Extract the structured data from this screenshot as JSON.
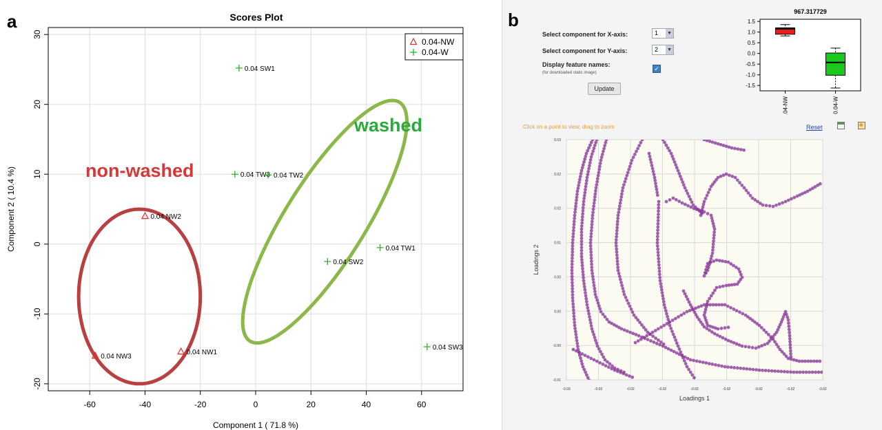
{
  "panel_a": {
    "letter": "a",
    "annotations": {
      "nonwashed": "non-washed",
      "washed": "washed"
    },
    "colors": {
      "nw": "#e8282a",
      "w": "#21b521",
      "nw_ellipse": "#b84040",
      "w_ellipse": "#8bb848",
      "grid": "#dddddd"
    }
  },
  "panel_b": {
    "letter": "b",
    "controls": {
      "x_axis_label": "Select component for X-axis:",
      "x_axis_value": "1",
      "y_axis_label": "Select component for Y-axis:",
      "y_axis_value": "2",
      "display_names_label": "Display feature names:",
      "display_names_note": "(for downloaded static image)",
      "display_names_checked": true,
      "update_button": "Update"
    },
    "hint": "Click on a point to view, drag to zoom",
    "reset": "Reset",
    "icons": [
      "table-icon",
      "image-icon"
    ]
  },
  "chart_data": [
    {
      "type": "scatter",
      "title": "Scores Plot",
      "xlabel": "Component 1 ( 71.8 %)",
      "ylabel": "Component 2 ( 10.4 %)",
      "xlim": [
        -75,
        75
      ],
      "ylim": [
        -21,
        31
      ],
      "xticks": [
        -60,
        -40,
        -20,
        0,
        20,
        40,
        60
      ],
      "yticks": [
        -20,
        -10,
        0,
        10,
        20,
        30
      ],
      "grid": true,
      "legend_position": "top-right",
      "series": [
        {
          "name": "0.04-NW",
          "marker": "triangle",
          "color": "#e8282a",
          "points": [
            {
              "label": "0.04 NW2",
              "x": -40,
              "y": 4
            },
            {
              "label": "0.04 NW1",
              "x": -27,
              "y": -15.4
            },
            {
              "label": "0.04 NW3",
              "x": -58,
              "y": -16
            }
          ]
        },
        {
          "name": "0.04-W",
          "marker": "plus",
          "color": "#21b521",
          "points": [
            {
              "label": "0.04 SW1",
              "x": -6,
              "y": 25.2
            },
            {
              "label": "0.04 TW3",
              "x": -7.5,
              "y": 10
            },
            {
              "label": "0.04 TW2",
              "x": 4.5,
              "y": 9.9
            },
            {
              "label": "0.04 TW1",
              "x": 45,
              "y": -0.5
            },
            {
              "label": "0.04 SW2",
              "x": 26,
              "y": -2.5
            },
            {
              "label": "0.04 SW3",
              "x": 62,
              "y": -14.7
            }
          ]
        }
      ],
      "ellipses": [
        {
          "group": "0.04-NW",
          "cx": -42,
          "cy": -7.5,
          "rx": 22,
          "ry": 12.5,
          "angle": 0
        },
        {
          "group": "0.04-W",
          "cx": 25,
          "cy": 3.2,
          "rx": 51,
          "ry": 14.5,
          "angle": -58
        }
      ]
    },
    {
      "type": "box",
      "title": "967.317729",
      "categories": [
        ".04-NW",
        "0.04-W"
      ],
      "ylim": [
        -1.75,
        1.6
      ],
      "yticks": [
        "1.5",
        "1.0",
        "0.5",
        "0.0",
        "-0.5",
        "-1.0",
        "-1.5"
      ],
      "boxes": [
        {
          "category": ".04-NW",
          "min": 0.82,
          "q1": 0.9,
          "median": 1.15,
          "q3": 1.2,
          "max": 1.35,
          "color": "#ee1c1c"
        },
        {
          "category": "0.04-W",
          "min": -1.62,
          "q1": -1.02,
          "median": -0.42,
          "q3": 0.02,
          "max": 0.25,
          "color": "#1cc81c"
        }
      ]
    },
    {
      "type": "scatter",
      "xlabel": "Loadings 1",
      "ylabel": "Loadings 2",
      "xticks": [
        "-0.03",
        "-0.03",
        "-0.02",
        "-0.02",
        "-0.02",
        "-0.02",
        "-0.02",
        "-0.02",
        "-0.02"
      ],
      "yticks": [
        "0.03",
        "0.02",
        "0.02",
        "0.01",
        "0.00",
        "0.00",
        "-0.00",
        "-0.01"
      ],
      "grid": true,
      "marker_color": "#8a3a98",
      "curves": [
        [
          [
            38,
            0
          ],
          [
            29,
            20
          ],
          [
            22,
            45
          ],
          [
            16,
            75
          ],
          [
            12,
            110
          ],
          [
            9,
            150
          ],
          [
            8,
            190
          ],
          [
            9,
            230
          ],
          [
            12,
            270
          ],
          [
            17,
            305
          ],
          [
            24,
            330
          ],
          [
            33,
            350
          ],
          [
            45,
            365
          ]
        ],
        [
          [
            44,
            0
          ],
          [
            36,
            25
          ],
          [
            30,
            55
          ],
          [
            25,
            90
          ],
          [
            22,
            130
          ],
          [
            22,
            170
          ],
          [
            25,
            205
          ],
          [
            30,
            240
          ],
          [
            37,
            275
          ],
          [
            45,
            300
          ],
          [
            56,
            320
          ],
          [
            70,
            332
          ],
          [
            88,
            340
          ]
        ],
        [
          [
            58,
            0
          ],
          [
            50,
            30
          ],
          [
            43,
            70
          ],
          [
            38,
            110
          ],
          [
            35,
            150
          ],
          [
            37,
            190
          ],
          [
            42,
            225
          ],
          [
            50,
            250
          ],
          [
            62,
            265
          ],
          [
            80,
            275
          ],
          [
            105,
            285
          ],
          [
            140,
            300
          ],
          [
            180,
            320
          ],
          [
            230,
            330
          ],
          [
            280,
            335
          ],
          [
            330,
            338
          ],
          [
            375,
            338
          ]
        ],
        [
          [
            110,
            0
          ],
          [
            95,
            30
          ],
          [
            82,
            70
          ],
          [
            75,
            110
          ],
          [
            72,
            150
          ],
          [
            75,
            190
          ],
          [
            84,
            225
          ],
          [
            98,
            255
          ],
          [
            118,
            280
          ],
          [
            145,
            300
          ]
        ],
        [
          [
            10,
            305
          ],
          [
            40,
            320
          ],
          [
            70,
            335
          ],
          [
            100,
            347
          ]
        ],
        [
          [
            134,
            90
          ],
          [
            132,
            150
          ],
          [
            136,
            205
          ],
          [
            142,
            240
          ],
          [
            150,
            270
          ],
          [
            162,
            300
          ],
          [
            175,
            330
          ],
          [
            188,
            350
          ]
        ],
        [
          [
            145,
            90
          ],
          [
            155,
            85
          ],
          [
            168,
            92
          ],
          [
            185,
            100
          ],
          [
            200,
            105
          ],
          [
            210,
            110
          ],
          [
            215,
            130
          ],
          [
            212,
            165
          ],
          [
            205,
            190
          ],
          [
            200,
            198
          ],
          [
            205,
            180
          ],
          [
            218,
            175
          ],
          [
            235,
            178
          ],
          [
            250,
            188
          ],
          [
            255,
            200
          ],
          [
            248,
            210
          ],
          [
            232,
            212
          ],
          [
            218,
            215
          ],
          [
            205,
            235
          ],
          [
            200,
            255
          ],
          [
            205,
            270
          ],
          [
            220,
            275
          ],
          [
            240,
            272
          ]
        ],
        [
          [
            195,
            110
          ],
          [
            200,
            90
          ],
          [
            210,
            68
          ],
          [
            220,
            55
          ],
          [
            232,
            50
          ],
          [
            245,
            55
          ],
          [
            258,
            70
          ],
          [
            270,
            85
          ],
          [
            285,
            95
          ],
          [
            300,
            97
          ],
          [
            318,
            90
          ],
          [
            335,
            82
          ],
          [
            350,
            75
          ],
          [
            372,
            62
          ]
        ],
        [
          [
            140,
            0
          ],
          [
            152,
            20
          ],
          [
            162,
            45
          ],
          [
            172,
            70
          ],
          [
            184,
            95
          ],
          [
            200,
            110
          ]
        ],
        [
          [
            100,
            295
          ],
          [
            125,
            280
          ],
          [
            150,
            265
          ],
          [
            175,
            250
          ],
          [
            200,
            240
          ],
          [
            230,
            240
          ],
          [
            260,
            255
          ],
          [
            280,
            270
          ],
          [
            300,
            290
          ],
          [
            310,
            305
          ],
          [
            322,
            318
          ],
          [
            338,
            322
          ],
          [
            355,
            322
          ],
          [
            372,
            322
          ]
        ],
        [
          [
            200,
            0
          ],
          [
            220,
            6
          ],
          [
            240,
            12
          ],
          [
            262,
            16
          ]
        ],
        [
          [
            170,
            220
          ],
          [
            180,
            240
          ],
          [
            190,
            258
          ],
          [
            200,
            272
          ],
          [
            215,
            282
          ],
          [
            235,
            292
          ],
          [
            255,
            300
          ],
          [
            275,
            303
          ],
          [
            292,
            296
          ],
          [
            305,
            280
          ],
          [
            312,
            265
          ],
          [
            318,
            250
          ],
          [
            322,
            262
          ],
          [
            324,
            285
          ],
          [
            326,
            320
          ]
        ],
        [
          [
            120,
            20
          ],
          [
            128,
            55
          ],
          [
            133,
            85
          ]
        ]
      ]
    }
  ]
}
